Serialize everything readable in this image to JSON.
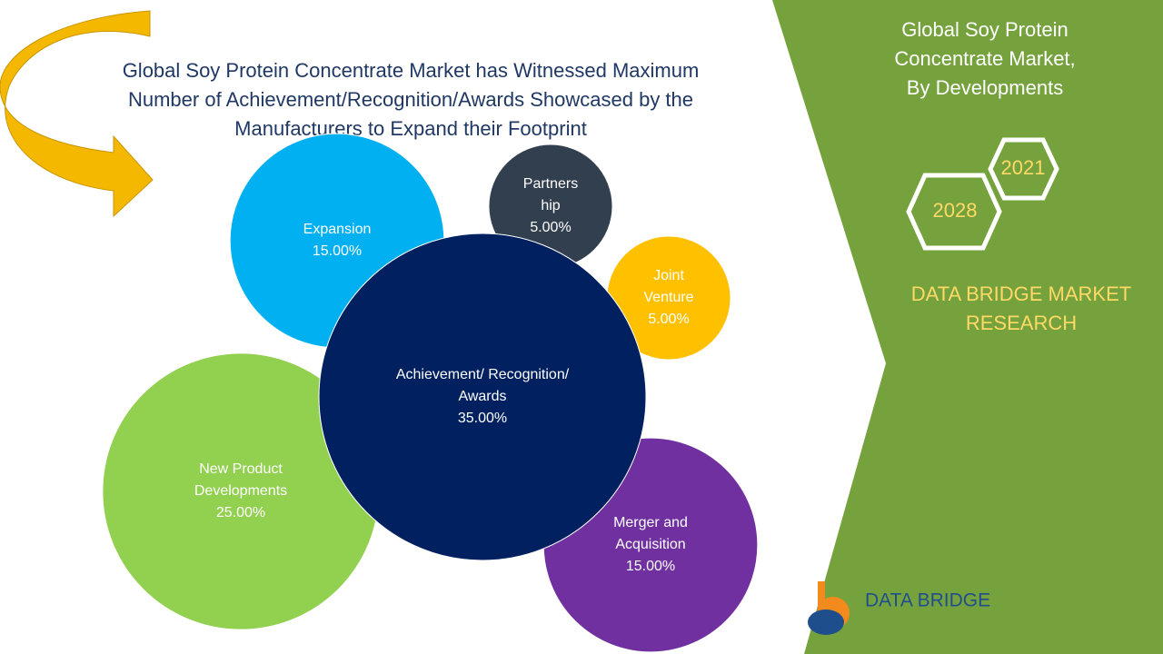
{
  "chart_data": {
    "type": "bubble",
    "title": "Global Soy Protein Concentrate Market has Witnessed Maximum\nNumber of Achievement/Recognition/Awards Showcased by the\nManufacturers to Expand their Footprint",
    "categories": [
      "Expansion",
      "Partners\nhip",
      "Joint\nVenture",
      "Achievement/ Recognition/\nAwards",
      "New Product\nDevelopments",
      "Merger and\nAcquisition"
    ],
    "values": [
      15,
      5,
      5,
      35,
      25,
      15
    ],
    "value_labels": [
      "15.00%",
      "5.00%",
      "5.00%",
      "35.00%",
      "25.00%",
      "15.00%"
    ],
    "colors": [
      "#00b0f0",
      "#323f4f",
      "#ffc000",
      "#002060",
      "#92d050",
      "#7030a0"
    ]
  },
  "panel": {
    "heading": "Global Soy Protein\nConcentrate Market,\nBy Developments",
    "years": [
      "2021",
      "2028"
    ],
    "brand": "DATA BRIDGE MARKET\nRESEARCH",
    "logo": "DATA BRIDGE"
  }
}
